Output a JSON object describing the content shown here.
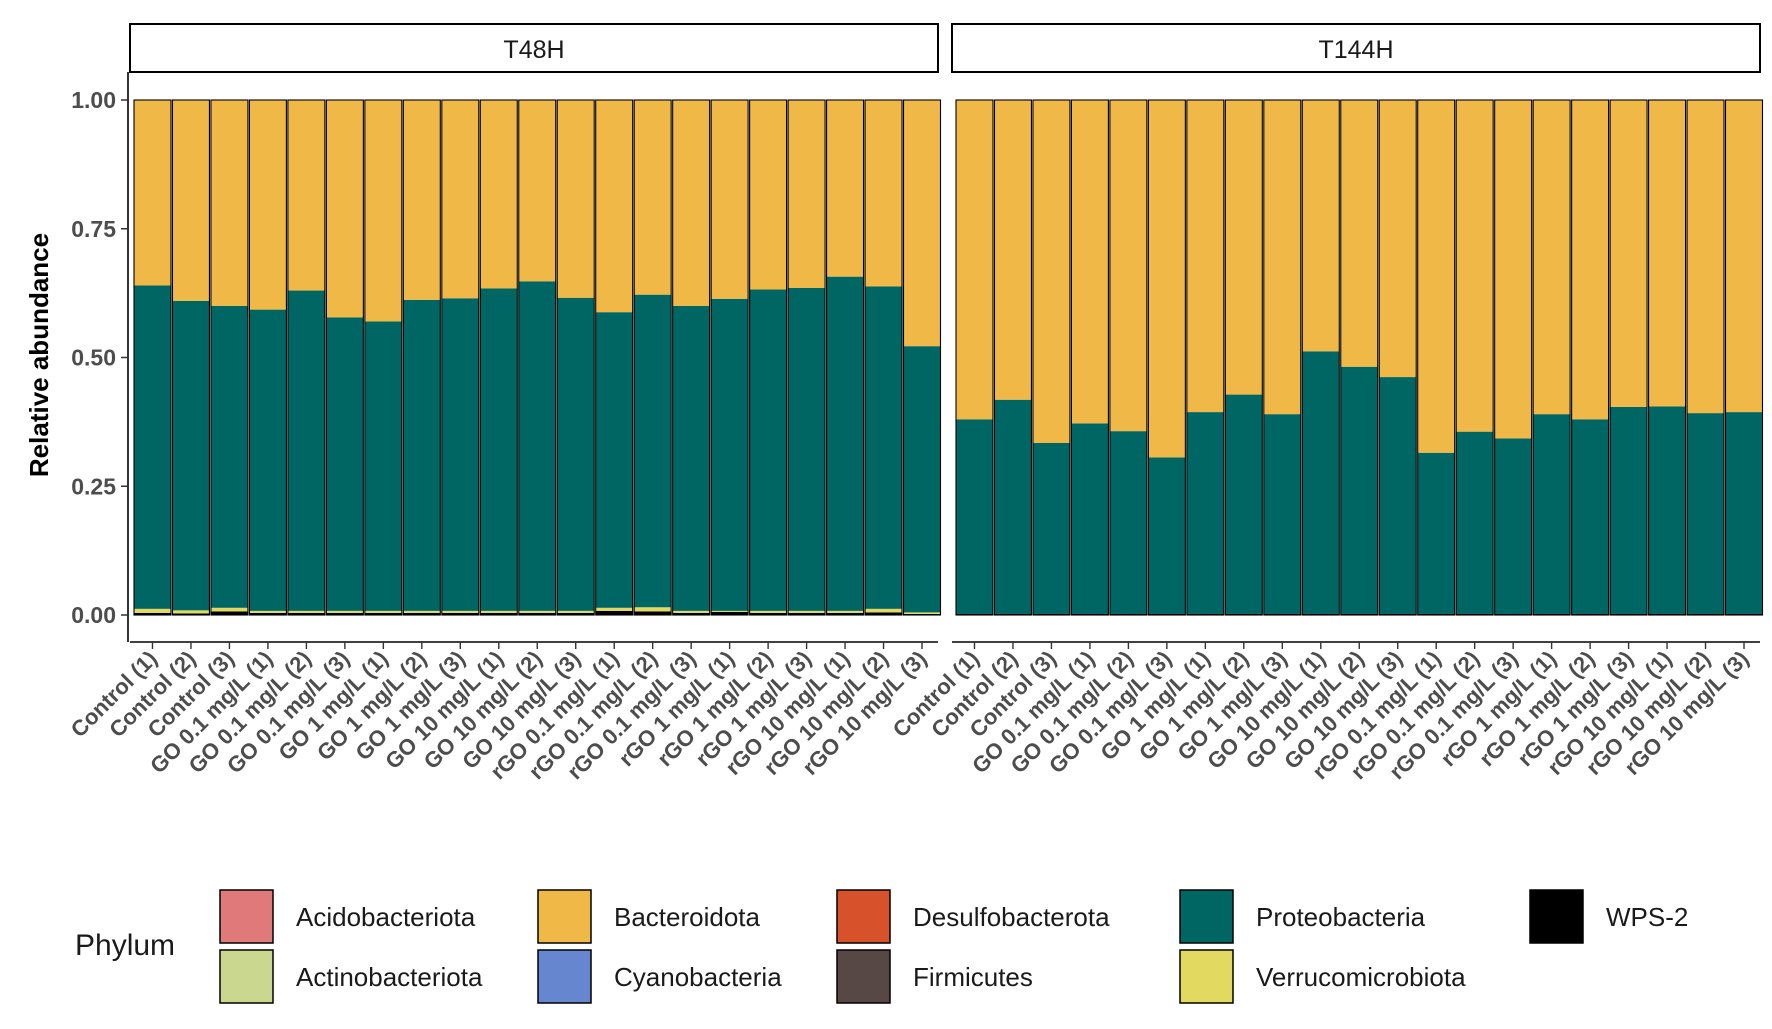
{
  "chart_data": {
    "type": "bar",
    "stacked": true,
    "ylabel": "Relative abundance",
    "ylim": [
      0,
      1
    ],
    "yticks": [
      "0.00",
      "0.25",
      "0.50",
      "0.75",
      "1.00"
    ],
    "categories": [
      "Control (1)",
      "Control (2)",
      "Control (3)",
      "GO 0.1 mg/L (1)",
      "GO 0.1 mg/L (2)",
      "GO 0.1 mg/L (3)",
      "GO 1 mg/L (1)",
      "GO 1 mg/L (2)",
      "GO 1 mg/L (3)",
      "GO 10 mg/L (1)",
      "GO 10 mg/L (2)",
      "GO 10 mg/L (3)",
      "rGO 0.1 mg/L (1)",
      "rGO 0.1 mg/L (2)",
      "rGO 0.1 mg/L (3)",
      "rGO 1 mg/L (1)",
      "rGO 1 mg/L (2)",
      "rGO 1 mg/L (3)",
      "rGO 10 mg/L (1)",
      "rGO 10 mg/L (2)",
      "rGO 10 mg/L (3)"
    ],
    "legend": {
      "title": "Phylum",
      "entries": [
        {
          "name": "Acidobacteriota",
          "color": "#E07A7A"
        },
        {
          "name": "Actinobacteriota",
          "color": "#C9D88E"
        },
        {
          "name": "Bacteroidota",
          "color": "#F0B846"
        },
        {
          "name": "Cyanobacteria",
          "color": "#6687CF"
        },
        {
          "name": "Desulfobacterota",
          "color": "#D7522A"
        },
        {
          "name": "Firmicutes",
          "color": "#574745"
        },
        {
          "name": "Proteobacteria",
          "color": "#006664"
        },
        {
          "name": "Verrucomicrobiota",
          "color": "#E2DA60"
        },
        {
          "name": "WPS-2",
          "color": "#000000"
        }
      ]
    },
    "panels": [
      {
        "title": "T48H",
        "series": [
          {
            "name": "WPS-2",
            "values": [
              0.004,
              0.003,
              0.007,
              0.004,
              0.004,
              0.004,
              0.004,
              0.004,
              0.004,
              0.004,
              0.004,
              0.004,
              0.008,
              0.007,
              0.004,
              0.006,
              0.004,
              0.004,
              0.004,
              0.005,
              0.002
            ]
          },
          {
            "name": "Verrucomicrobiota",
            "values": [
              0.008,
              0.006,
              0.007,
              0.004,
              0.004,
              0.004,
              0.004,
              0.004,
              0.004,
              0.004,
              0.004,
              0.004,
              0.006,
              0.008,
              0.004,
              0.002,
              0.004,
              0.004,
              0.004,
              0.007,
              0.003
            ]
          },
          {
            "name": "Proteobacteria",
            "values": [
              0.628,
              0.601,
              0.586,
              0.585,
              0.622,
              0.57,
              0.562,
              0.604,
              0.607,
              0.626,
              0.64,
              0.608,
              0.574,
              0.607,
              0.592,
              0.606,
              0.624,
              0.627,
              0.649,
              0.626,
              0.517
            ]
          },
          {
            "name": "Bacteroidota",
            "values": [
              0.36,
              0.39,
              0.4,
              0.407,
              0.37,
              0.422,
              0.43,
              0.388,
              0.385,
              0.366,
              0.352,
              0.384,
              0.412,
              0.378,
              0.4,
              0.386,
              0.368,
              0.365,
              0.343,
              0.362,
              0.478
            ]
          }
        ]
      },
      {
        "title": "T144H",
        "series": [
          {
            "name": "WPS-2",
            "values": [
              0.002,
              0.002,
              0.002,
              0.002,
              0.002,
              0.002,
              0.002,
              0.002,
              0.002,
              0.002,
              0.002,
              0.002,
              0.002,
              0.002,
              0.002,
              0.002,
              0.002,
              0.002,
              0.002,
              0.002,
              0.002
            ]
          },
          {
            "name": "Proteobacteria",
            "values": [
              0.378,
              0.416,
              0.332,
              0.37,
              0.355,
              0.304,
              0.392,
              0.426,
              0.388,
              0.51,
              0.48,
              0.46,
              0.313,
              0.354,
              0.341,
              0.388,
              0.378,
              0.402,
              0.403,
              0.39,
              0.392
            ]
          },
          {
            "name": "Bacteroidota",
            "values": [
              0.62,
              0.582,
              0.666,
              0.628,
              0.643,
              0.694,
              0.606,
              0.572,
              0.61,
              0.488,
              0.518,
              0.538,
              0.685,
              0.644,
              0.657,
              0.61,
              0.62,
              0.596,
              0.595,
              0.608,
              0.606
            ]
          }
        ]
      }
    ]
  }
}
